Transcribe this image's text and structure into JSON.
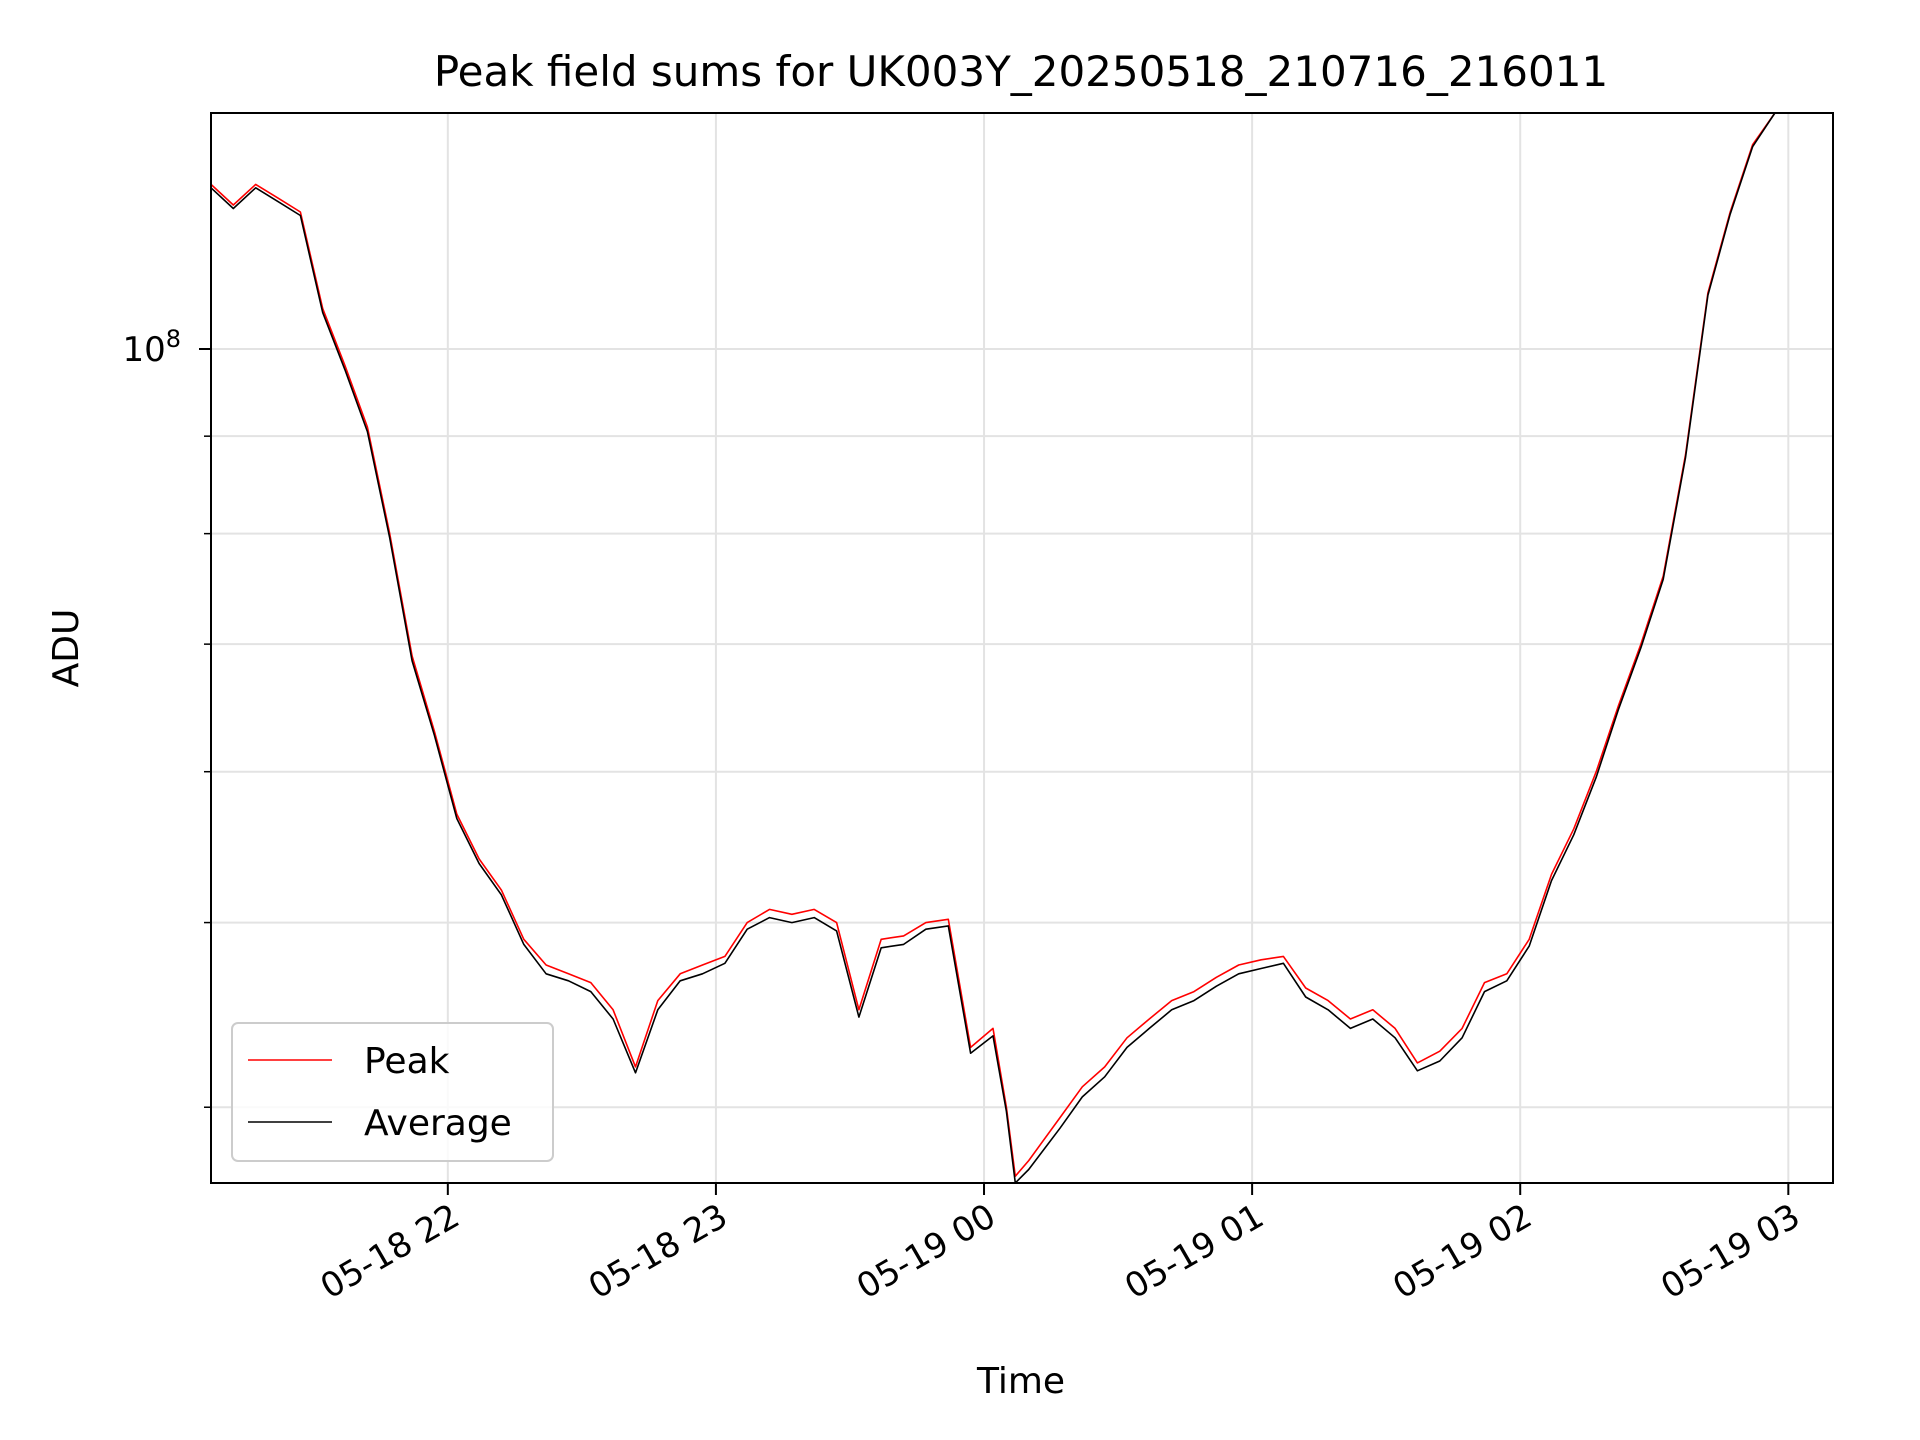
{
  "chart_data": {
    "type": "line",
    "title": "Peak field sums for UK003Y_20250518_210716_216011",
    "xlabel": "Time",
    "ylabel": "ADU",
    "y_scale": "log",
    "xlim": [
      "2025-05-18 21:07",
      "2025-05-19 03:10"
    ],
    "ylim": [
      36500000,
      133000000
    ],
    "x_ticks": [
      {
        "value": "2025-05-18 22:00",
        "label": "05-18 22"
      },
      {
        "value": "2025-05-18 23:00",
        "label": "05-18 23"
      },
      {
        "value": "2025-05-19 00:00",
        "label": "05-19 00"
      },
      {
        "value": "2025-05-19 01:00",
        "label": "05-19 01"
      },
      {
        "value": "2025-05-19 02:00",
        "label": "05-19 02"
      },
      {
        "value": "2025-05-19 03:00",
        "label": "05-19 03"
      }
    ],
    "y_major_tick": {
      "value": 100000000,
      "label_base": "10",
      "label_exp": "8"
    },
    "y_minor_ticks": [
      40000000,
      50000000,
      60000000,
      70000000,
      80000000,
      90000000
    ],
    "grid": true,
    "legend_position": "lower-left",
    "series": [
      {
        "name": "Peak",
        "color": "#ff0000"
      },
      {
        "name": "Average",
        "color": "#000000"
      }
    ],
    "x": [
      "2025-05-18 21:07",
      "2025-05-18 21:12",
      "2025-05-18 21:17",
      "2025-05-18 21:22",
      "2025-05-18 21:27",
      "2025-05-18 21:32",
      "2025-05-18 21:37",
      "2025-05-18 21:42",
      "2025-05-18 21:47",
      "2025-05-18 21:52",
      "2025-05-18 21:57",
      "2025-05-18 22:02",
      "2025-05-18 22:07",
      "2025-05-18 22:12",
      "2025-05-18 22:17",
      "2025-05-18 22:22",
      "2025-05-18 22:27",
      "2025-05-18 22:32",
      "2025-05-18 22:37",
      "2025-05-18 22:42",
      "2025-05-18 22:47",
      "2025-05-18 22:52",
      "2025-05-18 22:57",
      "2025-05-18 23:02",
      "2025-05-18 23:07",
      "2025-05-18 23:12",
      "2025-05-18 23:17",
      "2025-05-18 23:22",
      "2025-05-18 23:27",
      "2025-05-18 23:32",
      "2025-05-18 23:37",
      "2025-05-18 23:42",
      "2025-05-18 23:47",
      "2025-05-18 23:52",
      "2025-05-18 23:57",
      "2025-05-19 00:02",
      "2025-05-19 00:05",
      "2025-05-19 00:07",
      "2025-05-19 00:10",
      "2025-05-19 00:17",
      "2025-05-19 00:22",
      "2025-05-19 00:27",
      "2025-05-19 00:32",
      "2025-05-19 00:37",
      "2025-05-19 00:42",
      "2025-05-19 00:47",
      "2025-05-19 00:52",
      "2025-05-19 00:57",
      "2025-05-19 01:02",
      "2025-05-19 01:07",
      "2025-05-19 01:12",
      "2025-05-19 01:17",
      "2025-05-19 01:22",
      "2025-05-19 01:27",
      "2025-05-19 01:32",
      "2025-05-19 01:37",
      "2025-05-19 01:42",
      "2025-05-19 01:47",
      "2025-05-19 01:52",
      "2025-05-19 01:57",
      "2025-05-19 02:02",
      "2025-05-19 02:07",
      "2025-05-19 02:12",
      "2025-05-19 02:17",
      "2025-05-19 02:22",
      "2025-05-19 02:27",
      "2025-05-19 02:32",
      "2025-05-19 02:37",
      "2025-05-19 02:42",
      "2025-05-19 02:47",
      "2025-05-19 02:52",
      "2025-05-19 02:57",
      "2025-05-19 03:02",
      "2025-05-19 03:07"
    ],
    "y_peak": [
      122000000,
      119000000,
      122000000,
      120000000,
      118000000,
      105000000,
      98000000,
      91000000,
      80000000,
      69000000,
      63000000,
      57000000,
      54000000,
      52000000,
      49000000,
      47500000,
      47000000,
      46500000,
      45000000,
      42000000,
      45500000,
      47000000,
      47500000,
      48000000,
      50000000,
      50800000,
      50500000,
      50800000,
      50000000,
      45000000,
      49000000,
      49200000,
      50000000,
      50200000,
      43000000,
      44000000,
      40000000,
      36800000,
      37500000,
      39500000,
      41000000,
      42000000,
      43500000,
      44500000,
      45500000,
      46000000,
      46800000,
      47500000,
      47800000,
      48000000,
      46200000,
      45500000,
      44500000,
      45000000,
      44000000,
      42200000,
      42800000,
      44000000,
      46500000,
      47000000,
      49000000,
      53000000,
      56000000,
      60000000,
      65000000,
      70000000,
      76000000,
      88000000,
      107000000,
      118000000,
      128000000,
      133000000,
      133000000,
      133000000
    ],
    "y_average": [
      121500000,
      118500000,
      121500000,
      119500000,
      117500000,
      104500000,
      97500000,
      90500000,
      79600000,
      68600000,
      62700000,
      56700000,
      53700000,
      51700000,
      48700000,
      47000000,
      46600000,
      46000000,
      44500000,
      41700000,
      45000000,
      46600000,
      47000000,
      47600000,
      49600000,
      50300000,
      50000000,
      50300000,
      49500000,
      44600000,
      48500000,
      48700000,
      49600000,
      49800000,
      42700000,
      43600000,
      39800000,
      36500000,
      37100000,
      39000000,
      40500000,
      41500000,
      43000000,
      44000000,
      45000000,
      45500000,
      46300000,
      47000000,
      47300000,
      47600000,
      45700000,
      45000000,
      44000000,
      44500000,
      43500000,
      41800000,
      42300000,
      43500000,
      46000000,
      46600000,
      48600000,
      52600000,
      55600000,
      59600000,
      64700000,
      69700000,
      75700000,
      87700000,
      106700000,
      117700000,
      127700000,
      133000000,
      133000000,
      133000000
    ]
  }
}
